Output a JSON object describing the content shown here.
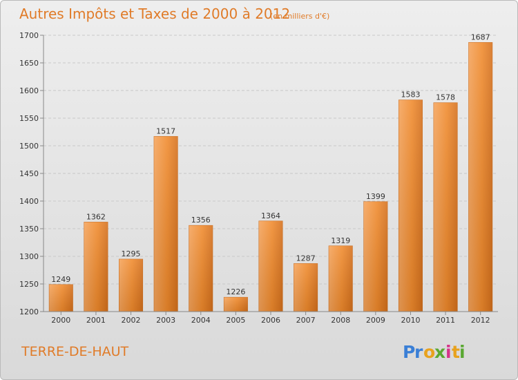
{
  "chart_data": {
    "type": "bar",
    "title": "Autres Impôts et Taxes de 2000 à 2012",
    "subtitle": "(en milliers d'€)",
    "categories": [
      "2000",
      "2001",
      "2002",
      "2003",
      "2004",
      "2005",
      "2006",
      "2007",
      "2008",
      "2009",
      "2010",
      "2011",
      "2012"
    ],
    "values": [
      1249,
      1362,
      1295,
      1517,
      1356,
      1226,
      1364,
      1287,
      1319,
      1399,
      1583,
      1578,
      1687
    ],
    "ylim": [
      1200,
      1700
    ],
    "yticks": [
      1200,
      1250,
      1300,
      1350,
      1400,
      1450,
      1500,
      1550,
      1600,
      1650,
      1700
    ],
    "grid": true,
    "bar_color": "#f08a2c"
  },
  "footer": {
    "place": "TERRE-DE-HAUT",
    "brand_letters": [
      {
        "ch": "P",
        "color": "#3a7fd6"
      },
      {
        "ch": "r",
        "color": "#3a7fd6"
      },
      {
        "ch": "o",
        "color": "#e8a21e"
      },
      {
        "ch": "x",
        "color": "#5aa832"
      },
      {
        "ch": "i",
        "color": "#d6338a"
      },
      {
        "ch": "t",
        "color": "#e8a21e"
      },
      {
        "ch": "i",
        "color": "#5aa832"
      }
    ]
  }
}
